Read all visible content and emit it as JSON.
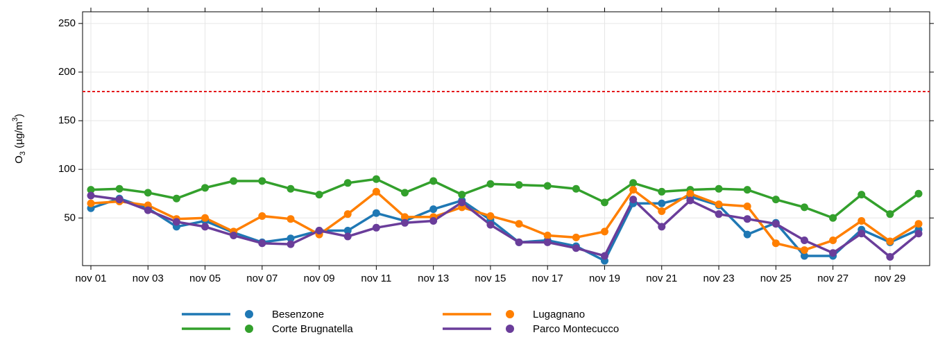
{
  "chart_data": {
    "type": "line",
    "y_label": [
      "O",
      "3",
      " (µg/m",
      "3",
      ")"
    ],
    "categories": [
      "nov 01",
      null,
      "nov 03",
      null,
      "nov 05",
      null,
      "nov 07",
      null,
      "nov 09",
      null,
      "nov 11",
      null,
      "nov 13",
      null,
      "nov 15",
      null,
      "nov 17",
      null,
      "nov 19",
      null,
      "nov 21",
      null,
      "nov 23",
      null,
      "nov 25",
      null,
      "nov 27",
      null,
      "nov 29",
      null
    ],
    "series": [
      {
        "name": "Besenzone",
        "color": "#1f78b4",
        "values": [
          60,
          70,
          60,
          41,
          47,
          35,
          25,
          29,
          37,
          37,
          55,
          47,
          59,
          68,
          48,
          25,
          27,
          21,
          6,
          65,
          65,
          72,
          63,
          33,
          45,
          11,
          11,
          38,
          25,
          38
        ]
      },
      {
        "name": "Corte Brugnatella",
        "color": "#33a02c",
        "values": [
          79,
          80,
          76,
          70,
          81,
          88,
          88,
          80,
          74,
          86,
          90,
          76,
          88,
          74,
          85,
          84,
          83,
          80,
          66,
          86,
          77,
          79,
          80,
          79,
          69,
          61,
          50,
          74,
          54,
          75
        ]
      },
      {
        "name": "Lugagnano",
        "color": "#ff7f00",
        "values": [
          65,
          67,
          63,
          49,
          50,
          36,
          52,
          49,
          33,
          54,
          77,
          51,
          51,
          61,
          52,
          44,
          32,
          30,
          36,
          79,
          57,
          75,
          64,
          62,
          24,
          17,
          27,
          47,
          26,
          44
        ]
      },
      {
        "name": "Parco Montecucco",
        "color": "#6a3d9a",
        "values": [
          73,
          69,
          58,
          46,
          41,
          32,
          24,
          23,
          37,
          31,
          40,
          45,
          47,
          66,
          43,
          25,
          25,
          19,
          11,
          69,
          41,
          68,
          54,
          49,
          44,
          27,
          14,
          34,
          10,
          34
        ]
      }
    ],
    "ylim": [
      1,
      262
    ],
    "yticks": [
      50,
      100,
      150,
      200,
      250
    ],
    "grid": true,
    "reference_line": {
      "value": 180,
      "color": "#e41a1c"
    },
    "legend": "bottom"
  }
}
